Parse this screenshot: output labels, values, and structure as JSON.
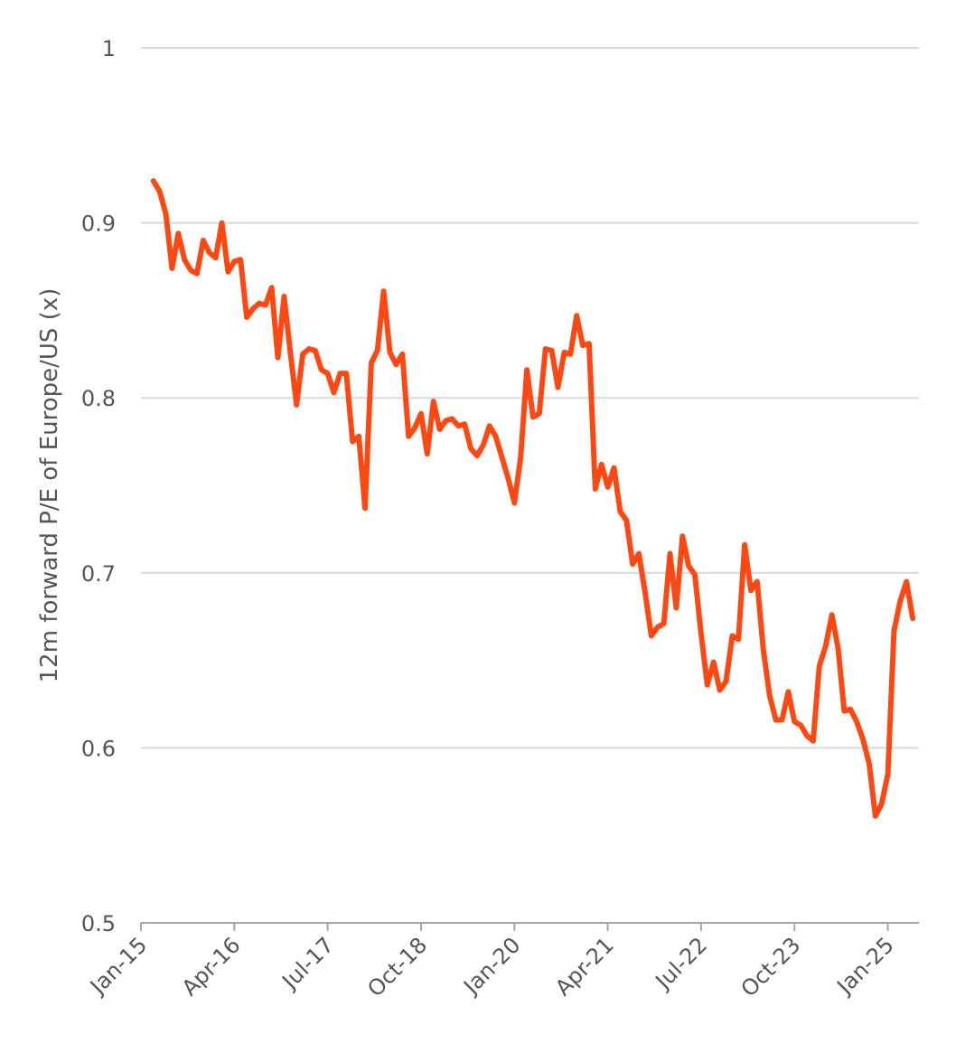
{
  "chart_data": {
    "type": "line",
    "title": "",
    "xlabel": "",
    "ylabel": "12m forward P/E of Europe/US (x)",
    "ylim": [
      0.5,
      1.0
    ],
    "xlim": [
      "2015-01",
      "2025-06"
    ],
    "grid": true,
    "y_ticks": [
      "0.5",
      "0.6",
      "0.7",
      "0.8",
      "0.9",
      "1"
    ],
    "x_ticks": [
      {
        "label": "Jan-15",
        "date": "2015-01"
      },
      {
        "label": "Apr-16",
        "date": "2016-04"
      },
      {
        "label": "Jul-17",
        "date": "2017-07"
      },
      {
        "label": "Oct-18",
        "date": "2018-10"
      },
      {
        "label": "Jan-20",
        "date": "2020-01"
      },
      {
        "label": "Apr-21",
        "date": "2021-04"
      },
      {
        "label": "Jul-22",
        "date": "2022-07"
      },
      {
        "label": "Oct-23",
        "date": "2023-10"
      },
      {
        "label": "Jan-25",
        "date": "2025-01"
      }
    ],
    "colors": {
      "line": "#FC4914",
      "grid": "#D9D9D9",
      "axis": "#A6A6A6",
      "text": "#555555"
    },
    "series": [
      {
        "x": [
          "2015-03",
          "2015-04",
          "2015-05",
          "2015-06",
          "2015-07",
          "2015-08",
          "2015-09",
          "2015-10",
          "2015-11",
          "2015-12",
          "2016-01",
          "2016-02",
          "2016-03",
          "2016-04",
          "2016-05",
          "2016-06",
          "2016-07",
          "2016-08",
          "2016-09",
          "2016-10",
          "2016-11",
          "2016-12",
          "2017-01",
          "2017-02",
          "2017-03",
          "2017-04",
          "2017-05",
          "2017-06",
          "2017-07",
          "2017-08",
          "2017-09",
          "2017-10",
          "2017-11",
          "2017-12",
          "2018-01",
          "2018-02",
          "2018-03",
          "2018-04",
          "2018-05",
          "2018-06",
          "2018-07",
          "2018-08",
          "2018-09",
          "2018-10",
          "2018-11",
          "2018-12",
          "2019-01",
          "2019-02",
          "2019-03",
          "2019-04",
          "2019-05",
          "2019-06",
          "2019-07",
          "2019-08",
          "2019-09",
          "2019-10",
          "2019-11",
          "2019-12",
          "2020-01",
          "2020-02",
          "2020-03",
          "2020-04",
          "2020-05",
          "2020-06",
          "2020-07",
          "2020-08",
          "2020-09",
          "2020-10",
          "2020-11",
          "2020-12",
          "2021-01",
          "2021-02",
          "2021-03",
          "2021-04",
          "2021-05",
          "2021-06",
          "2021-07",
          "2021-08",
          "2021-09",
          "2021-10",
          "2021-11",
          "2021-12",
          "2022-01",
          "2022-02",
          "2022-03",
          "2022-04",
          "2022-05",
          "2022-06",
          "2022-07",
          "2022-08",
          "2022-09",
          "2022-10",
          "2022-11",
          "2022-12",
          "2023-01",
          "2023-02",
          "2023-03",
          "2023-04",
          "2023-05",
          "2023-06",
          "2023-07",
          "2023-08",
          "2023-09",
          "2023-10",
          "2023-11",
          "2023-12",
          "2024-01",
          "2024-02",
          "2024-03",
          "2024-04",
          "2024-05",
          "2024-06",
          "2024-07",
          "2024-08",
          "2024-09",
          "2024-10",
          "2024-11",
          "2024-12",
          "2025-01",
          "2025-02",
          "2025-03",
          "2025-04",
          "2025-05"
        ],
        "values": [
          0.924,
          0.918,
          0.905,
          0.874,
          0.894,
          0.879,
          0.873,
          0.871,
          0.89,
          0.883,
          0.88,
          0.9,
          0.872,
          0.878,
          0.879,
          0.846,
          0.851,
          0.854,
          0.853,
          0.863,
          0.823,
          0.858,
          0.826,
          0.796,
          0.825,
          0.828,
          0.827,
          0.816,
          0.814,
          0.803,
          0.814,
          0.814,
          0.775,
          0.778,
          0.737,
          0.82,
          0.827,
          0.861,
          0.826,
          0.819,
          0.825,
          0.778,
          0.783,
          0.791,
          0.768,
          0.798,
          0.782,
          0.787,
          0.788,
          0.784,
          0.785,
          0.771,
          0.767,
          0.773,
          0.784,
          0.778,
          0.766,
          0.754,
          0.74,
          0.766,
          0.816,
          0.789,
          0.791,
          0.828,
          0.827,
          0.806,
          0.826,
          0.825,
          0.847,
          0.83,
          0.831,
          0.748,
          0.762,
          0.749,
          0.76,
          0.735,
          0.73,
          0.705,
          0.711,
          0.689,
          0.664,
          0.669,
          0.671,
          0.711,
          0.68,
          0.721,
          0.704,
          0.699,
          0.665,
          0.636,
          0.649,
          0.633,
          0.638,
          0.664,
          0.662,
          0.716,
          0.69,
          0.695,
          0.656,
          0.63,
          0.616,
          0.616,
          0.632,
          0.615,
          0.613,
          0.607,
          0.604,
          0.647,
          0.658,
          0.676,
          0.657,
          0.621,
          0.622,
          0.615,
          0.605,
          0.591,
          0.561,
          0.568,
          0.585,
          0.667,
          0.684,
          0.695,
          0.674
        ]
      }
    ]
  }
}
